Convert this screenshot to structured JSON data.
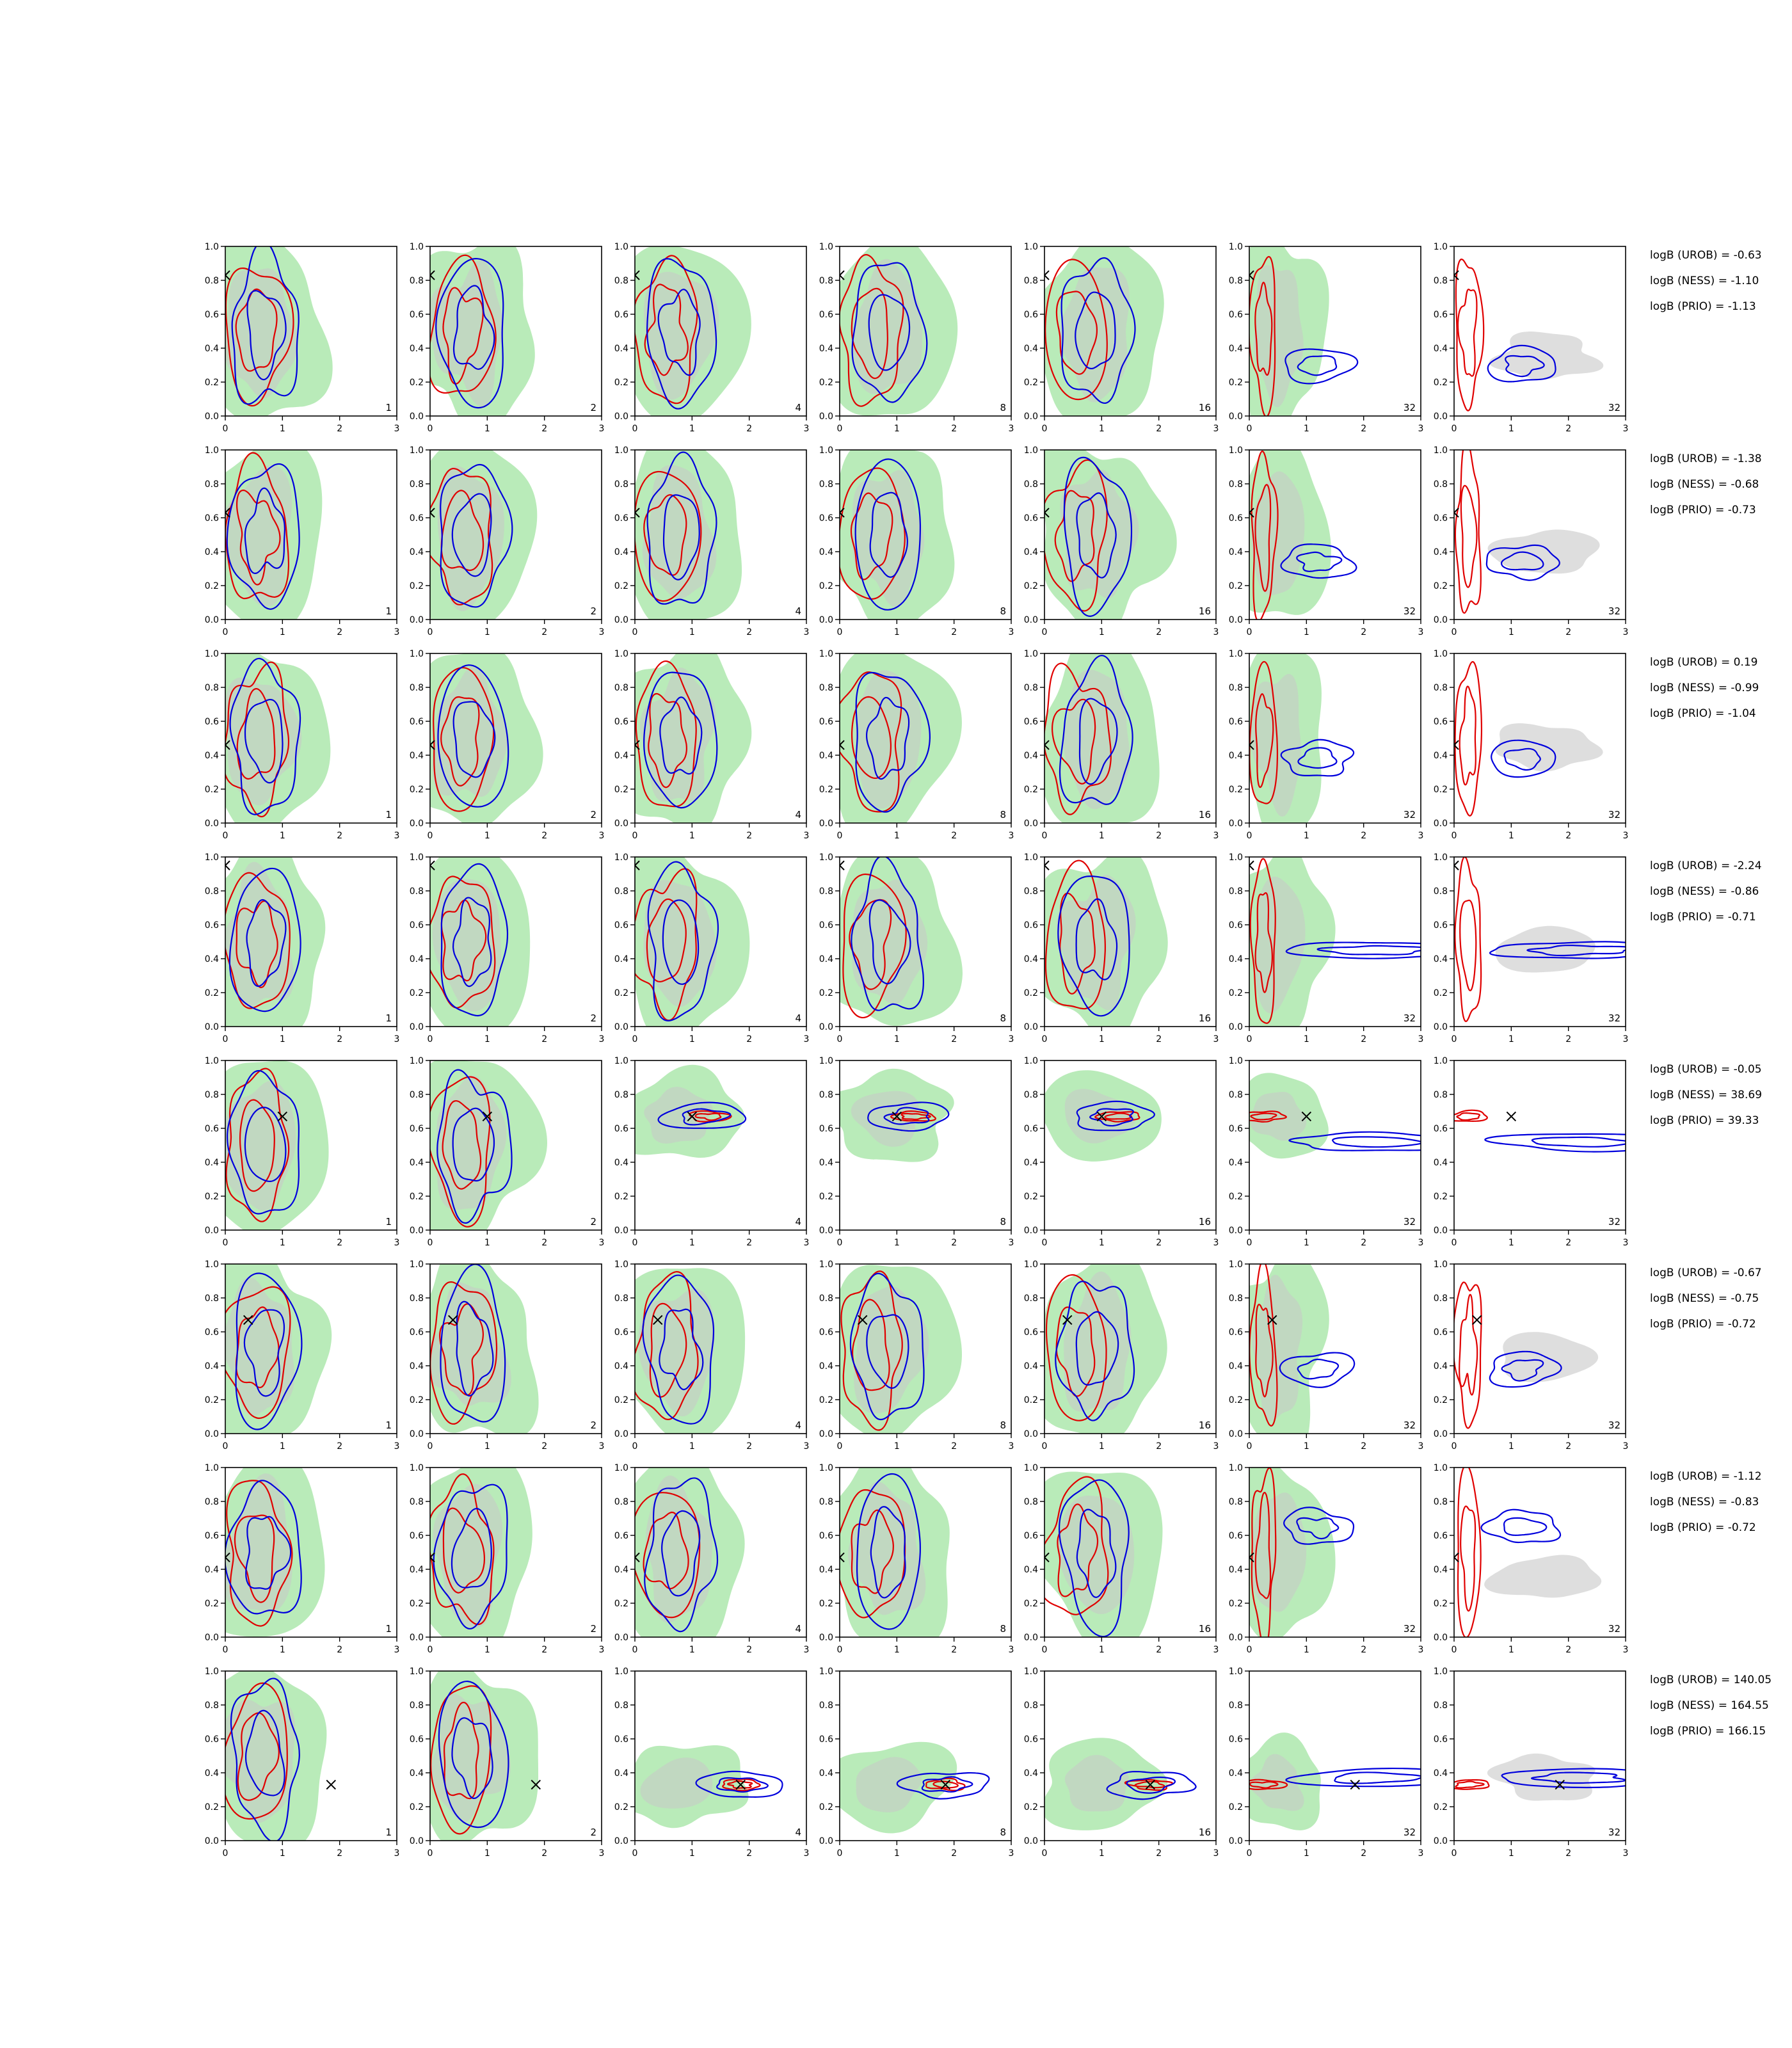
{
  "chart_data": {
    "type": "contour-grid",
    "layout": {
      "rows": 8,
      "cols": 7
    },
    "xlim": [
      0,
      3
    ],
    "ylim": [
      0,
      1
    ],
    "xticks": [
      0,
      1,
      2,
      3
    ],
    "yticks": [
      0.0,
      0.2,
      0.4,
      0.6,
      0.8,
      1.0
    ],
    "xtick_labels": [
      "0",
      "1",
      "2",
      "3"
    ],
    "ytick_labels": [
      "0.0",
      "0.2",
      "0.4",
      "0.6",
      "0.8",
      "1.0"
    ],
    "panel_labels": [
      "1",
      "2",
      "4",
      "8",
      "16",
      "32",
      "32"
    ],
    "colors": {
      "green_fill": "#b9ebb9",
      "grey_fill": "#c8c8c8",
      "red_contour": "#e00000",
      "blue_contour": "#0000dd",
      "marker": "#000000"
    },
    "truth": [
      {
        "x": 0.0,
        "y": 0.83
      },
      {
        "x": 0.0,
        "y": 0.63
      },
      {
        "x": 0.0,
        "y": 0.46
      },
      {
        "x": 0.0,
        "y": 0.95
      },
      {
        "x": 1.0,
        "y": 0.67
      },
      {
        "x": 0.4,
        "y": 0.67
      },
      {
        "x": 0.0,
        "y": 0.47
      },
      {
        "x": 1.85,
        "y": 0.33
      }
    ],
    "row_labels": [
      [
        "logB (UROB) = -0.63",
        "logB (NESS) = -1.10",
        "logB (PRIO) = -1.13"
      ],
      [
        "logB (UROB) = -1.38",
        "logB (NESS) = -0.68",
        "logB (PRIO) = -0.73"
      ],
      [
        "logB (UROB) = 0.19",
        "logB (NESS) = -0.99",
        "logB (PRIO) = -1.04"
      ],
      [
        "logB (UROB) = -2.24",
        "logB (NESS) = -0.86",
        "logB (PRIO) = -0.71"
      ],
      [
        "logB (UROB) = -0.05",
        "logB (NESS) = 38.69",
        "logB (PRIO) = 39.33"
      ],
      [
        "logB (UROB) = -0.67",
        "logB (NESS) = -0.75",
        "logB (PRIO) = -0.72"
      ],
      [
        "logB (UROB) = -1.12",
        "logB (NESS) = -0.83",
        "logB (PRIO) = -0.72"
      ],
      [
        "logB (UROB) = 140.05",
        "logB (NESS) = 164.55",
        "logB (PRIO) = 166.15"
      ]
    ]
  }
}
